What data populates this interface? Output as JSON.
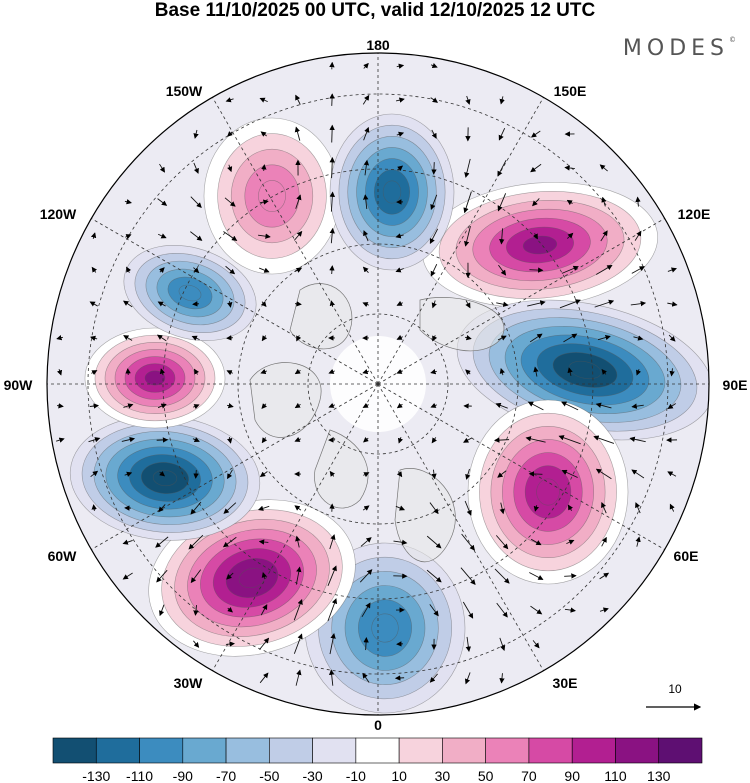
{
  "header": {
    "title": "Base 11/10/2025 00 UTC, valid 12/10/2025 12 UTC",
    "brand": "MODES",
    "brand_mark": "©"
  },
  "map": {
    "projection": "north-polar-stereographic",
    "longitude_labels": {
      "lon_180": "180",
      "lon_150e": "150E",
      "lon_120e": "120E",
      "lon_90e": "90E",
      "lon_60e": "60E",
      "lon_30e": "30E",
      "lon_0": "0",
      "lon_30w": "30W",
      "lon_60w": "60W",
      "lon_90w": "90W",
      "lon_120w": "120W",
      "lon_150w": "150W"
    },
    "anomaly_centers": [
      {
        "id": "east-asia-ridge",
        "sign": "positive",
        "peak": 120
      },
      {
        "id": "siberia-trough",
        "sign": "negative",
        "peak": -130
      },
      {
        "id": "west-russia-ridge",
        "sign": "positive",
        "peak": 110
      },
      {
        "id": "europe-trough",
        "sign": "negative",
        "peak": -90
      },
      {
        "id": "north-atlantic-ridge",
        "sign": "positive",
        "peak": 130
      },
      {
        "id": "labrador-trough",
        "sign": "negative",
        "peak": -130
      },
      {
        "id": "canada-ridge",
        "sign": "positive",
        "peak": 120
      },
      {
        "id": "alaska-trough",
        "sign": "negative",
        "peak": -90
      },
      {
        "id": "ne-pacific-ridge",
        "sign": "positive",
        "peak": 70
      },
      {
        "id": "bering-trough",
        "sign": "negative",
        "peak": -110
      }
    ],
    "wind_reference": {
      "value": "10"
    }
  },
  "colorbar": {
    "ticks": [
      "-130",
      "-110",
      "-90",
      "-70",
      "-50",
      "-30",
      "-10",
      "10",
      "30",
      "50",
      "70",
      "90",
      "110",
      "130"
    ],
    "colors": [
      "#124f72",
      "#1f6d9c",
      "#3c8cbf",
      "#69a9d0",
      "#98bedf",
      "#c0cde7",
      "#e1e1f1",
      "#ffffff",
      "#f7d3dd",
      "#f1aec6",
      "#eb82b8",
      "#d64aa5",
      "#b21f91",
      "#8a1282",
      "#5e0f72"
    ]
  }
}
